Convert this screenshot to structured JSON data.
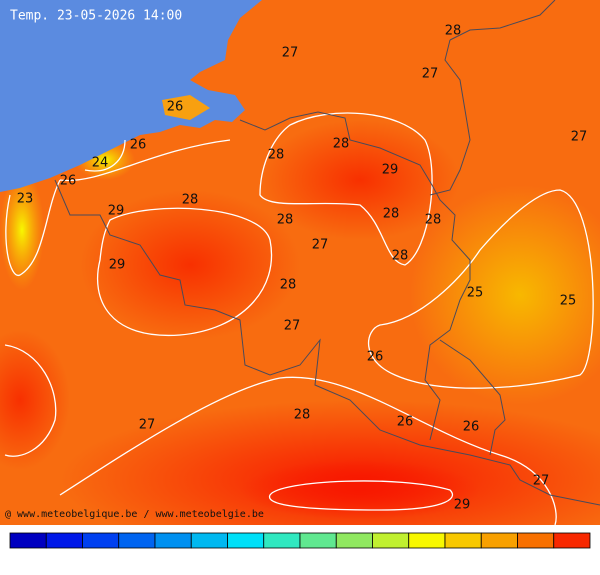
{
  "header": {
    "title": "Temp. 23-05-2026 14:00"
  },
  "labels": [
    27,
    28,
    27,
    27,
    26,
    26,
    24,
    26,
    23,
    28,
    28,
    29,
    28,
    29,
    28,
    28,
    28,
    27,
    28,
    29,
    28,
    25,
    25,
    27,
    26,
    28,
    27,
    26,
    26,
    27,
    29
  ],
  "credit": "@ www.meteobelgique.be / www.meteobelgie.be"
}
